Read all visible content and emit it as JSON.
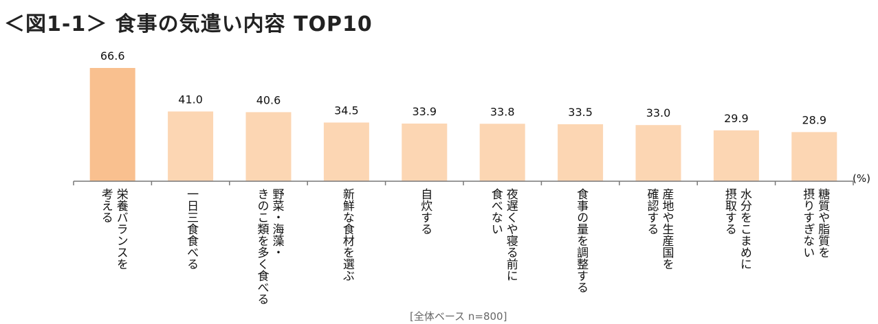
{
  "title": "＜図1-1＞ 食事の気遣い内容 TOP10",
  "unit_label": "(%)",
  "base_note": "[全体ベース n=800]",
  "colors": {
    "highlight_bar": "#f9c08f",
    "bar": "#fcd6b3",
    "axis": "#777777"
  },
  "chart_data": {
    "type": "bar",
    "title": "＜図1-1＞ 食事の気遣い内容 TOP10",
    "ylabel": "(%)",
    "xlabel": "",
    "ylim": [
      0,
      70
    ],
    "grid": false,
    "categories": [
      [
        "栄養バランスを",
        "考える"
      ],
      [
        "一日三食食べる"
      ],
      [
        "野菜・海藻・",
        "きのこ類を多く食べる"
      ],
      [
        "新鮮な食材を選ぶ"
      ],
      [
        "自炊する"
      ],
      [
        "夜遅くや寝る前に",
        "食べない"
      ],
      [
        "食事の量を調整する"
      ],
      [
        "産地や生産国を",
        "確認する"
      ],
      [
        "水分をこまめに",
        "摂取する"
      ],
      [
        "糖質や脂質を",
        "摂りすぎない"
      ]
    ],
    "values": [
      66.6,
      41.0,
      40.6,
      34.5,
      33.9,
      33.8,
      33.5,
      33.0,
      29.9,
      28.9
    ],
    "value_labels": [
      "66.6",
      "41.0",
      "40.6",
      "34.5",
      "33.9",
      "33.8",
      "33.5",
      "33.0",
      "29.9",
      "28.9"
    ],
    "highlight_index": 0
  }
}
